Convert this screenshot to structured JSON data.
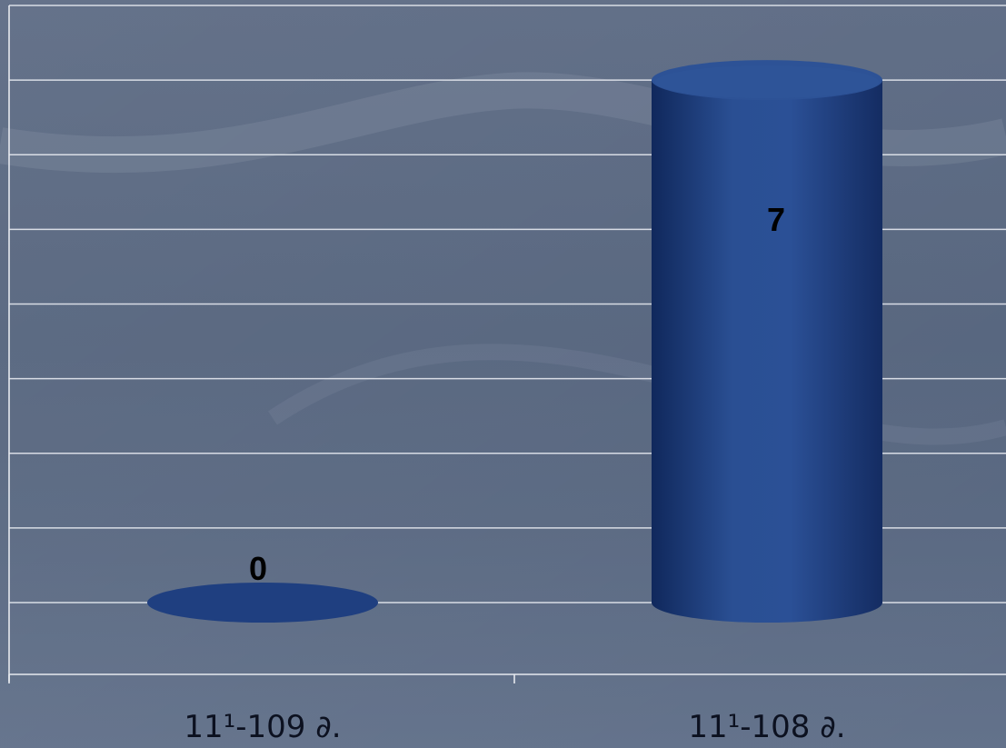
{
  "chart_data": {
    "type": "bar",
    "categories": [
      "11¹-109 ∂.",
      "11¹-108 ∂."
    ],
    "values": [
      0,
      7
    ],
    "data_labels": [
      "0",
      "7"
    ],
    "title": "",
    "xlabel": "",
    "ylabel": "",
    "ylim": [
      0,
      8
    ],
    "grid": true,
    "legend": "none",
    "bar_shape": "cylinder",
    "colors": {
      "bar": "#1f3f80",
      "bar_dark": "#0f2456",
      "bar_top": "#2d5296",
      "gridline": "#e6e9ef",
      "label": "#000000"
    }
  }
}
